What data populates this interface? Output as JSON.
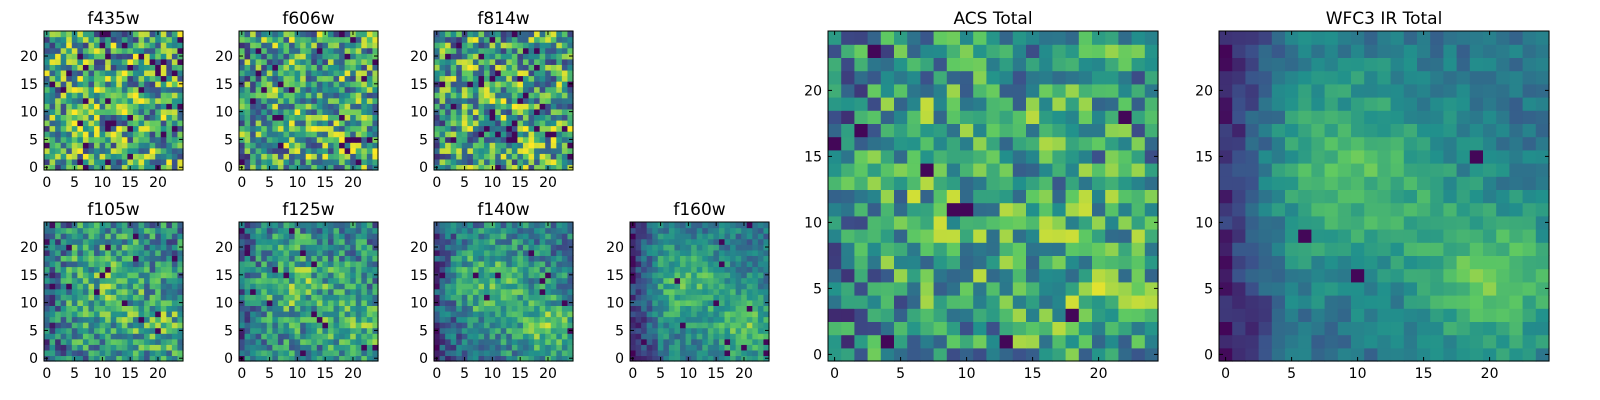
{
  "chart_data": [
    {
      "type": "heatmap",
      "title": "f435w",
      "size": 25,
      "xticks": [
        0,
        5,
        10,
        15,
        20
      ],
      "yticks": [
        0,
        5,
        10,
        15,
        20
      ],
      "xlim": [
        0,
        25
      ],
      "ylim": [
        0,
        25
      ]
    },
    {
      "type": "heatmap",
      "title": "f606w",
      "size": 25,
      "xticks": [
        0,
        5,
        10,
        15,
        20
      ],
      "yticks": [
        0,
        5,
        10,
        15,
        20
      ],
      "xlim": [
        0,
        25
      ],
      "ylim": [
        0,
        25
      ]
    },
    {
      "type": "heatmap",
      "title": "f814w",
      "size": 25,
      "xticks": [
        0,
        5,
        10,
        15,
        20
      ],
      "yticks": [
        0,
        5,
        10,
        15,
        20
      ],
      "xlim": [
        0,
        25
      ],
      "ylim": [
        0,
        25
      ]
    },
    {
      "type": "heatmap",
      "title": "f105w",
      "size": 25,
      "xticks": [
        0,
        5,
        10,
        15,
        20
      ],
      "yticks": [
        0,
        5,
        10,
        15,
        20
      ],
      "xlim": [
        0,
        25
      ],
      "ylim": [
        0,
        25
      ]
    },
    {
      "type": "heatmap",
      "title": "f125w",
      "size": 25,
      "xticks": [
        0,
        5,
        10,
        15,
        20
      ],
      "yticks": [
        0,
        5,
        10,
        15,
        20
      ],
      "xlim": [
        0,
        25
      ],
      "ylim": [
        0,
        25
      ]
    },
    {
      "type": "heatmap",
      "title": "f140w",
      "size": 25,
      "xticks": [
        0,
        5,
        10,
        15,
        20
      ],
      "yticks": [
        0,
        5,
        10,
        15,
        20
      ],
      "xlim": [
        0,
        25
      ],
      "ylim": [
        0,
        25
      ]
    },
    {
      "type": "heatmap",
      "title": "f160w",
      "size": 25,
      "xticks": [
        0,
        5,
        10,
        15,
        20
      ],
      "yticks": [
        0,
        5,
        10,
        15,
        20
      ],
      "xlim": [
        0,
        25
      ],
      "ylim": [
        0,
        25
      ]
    },
    {
      "type": "heatmap",
      "title": "ACS Total",
      "size": 25,
      "xticks": [
        0,
        5,
        10,
        15,
        20
      ],
      "yticks": [
        0,
        5,
        10,
        15,
        20
      ],
      "xlim": [
        0,
        25
      ],
      "ylim": [
        0,
        25
      ]
    },
    {
      "type": "heatmap",
      "title": "WFC3 IR Total",
      "size": 25,
      "xticks": [
        0,
        5,
        10,
        15,
        20
      ],
      "yticks": [
        0,
        5,
        10,
        15,
        20
      ],
      "xlim": [
        0,
        25
      ],
      "ylim": [
        0,
        25
      ]
    }
  ],
  "colormap": [
    "#440154",
    "#3b528b",
    "#21918c",
    "#5ec962",
    "#fde725"
  ]
}
